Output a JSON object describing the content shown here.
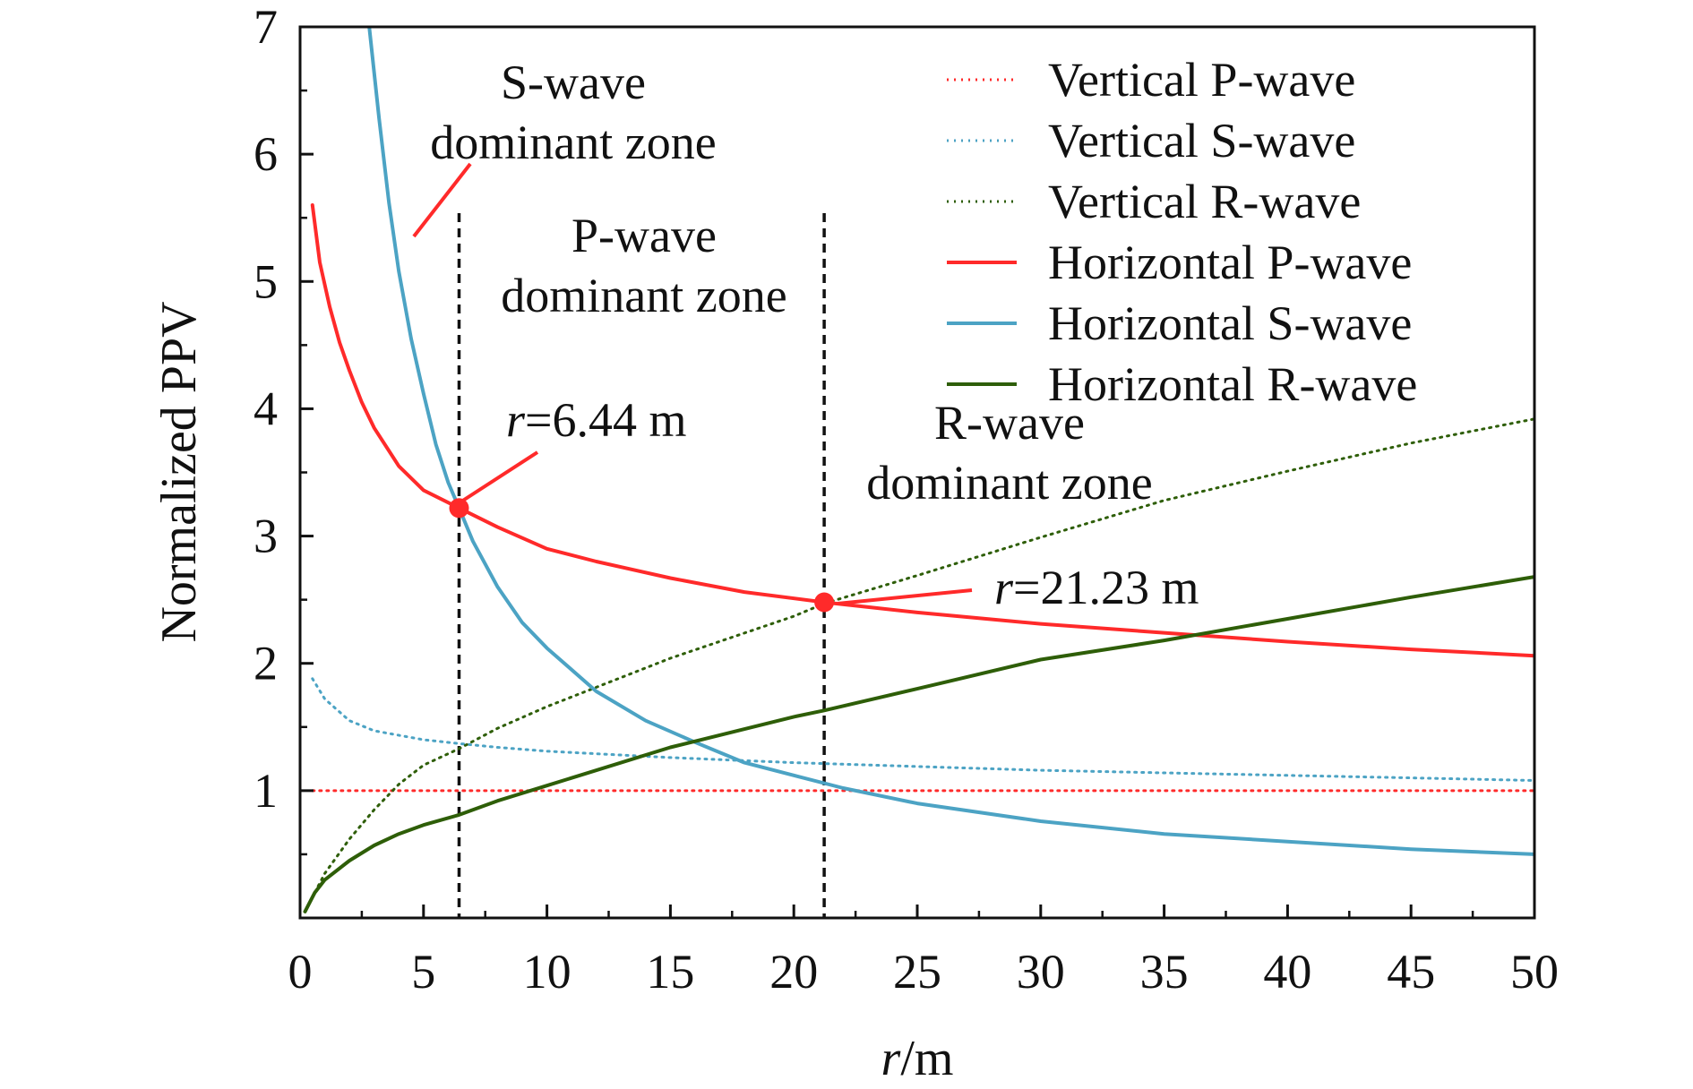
{
  "chart_data": {
    "type": "line",
    "xlabel_italic": "r",
    "xlabel_rest": "/m",
    "ylabel": "Normalized PPV",
    "xlim": [
      0,
      50
    ],
    "ylim": [
      0,
      7
    ],
    "x_ticks": [
      "0",
      "5",
      "10",
      "15",
      "20",
      "25",
      "30",
      "35",
      "40",
      "45",
      "50"
    ],
    "y_ticks": [
      "1",
      "2",
      "3",
      "4",
      "5",
      "6",
      "7"
    ],
    "grid": false,
    "legend_position": "top-right",
    "series": [
      {
        "name": "Vertical P-wave",
        "style": "dotted",
        "color": "#ff2a2a",
        "x": [
          0.5,
          50
        ],
        "y": [
          1.0,
          1.0
        ]
      },
      {
        "name": "Vertical S-wave",
        "style": "dotted",
        "color": "#4ca3c4",
        "x": [
          0.5,
          1,
          2,
          3,
          5,
          6.44,
          8,
          10,
          15,
          20,
          25,
          30,
          35,
          40,
          45,
          50
        ],
        "y": [
          1.88,
          1.72,
          1.55,
          1.47,
          1.4,
          1.37,
          1.34,
          1.31,
          1.26,
          1.22,
          1.19,
          1.16,
          1.14,
          1.12,
          1.1,
          1.08
        ]
      },
      {
        "name": "Vertical R-wave",
        "style": "dotted",
        "color": "#2e5e08",
        "x": [
          0.2,
          1,
          2,
          3,
          4,
          5,
          6.44,
          8,
          10,
          15,
          20,
          21.23,
          25,
          30,
          35,
          40,
          45,
          50
        ],
        "y": [
          0.05,
          0.35,
          0.62,
          0.85,
          1.05,
          1.2,
          1.33,
          1.49,
          1.66,
          2.04,
          2.37,
          2.47,
          2.69,
          2.99,
          3.28,
          3.51,
          3.73,
          3.92
        ]
      },
      {
        "name": "Horizontal P-wave",
        "style": "solid",
        "color": "#ff2a2a",
        "x": [
          0.5,
          0.8,
          1.2,
          1.6,
          2,
          2.5,
          3,
          4,
          5,
          6.44,
          8,
          10,
          12,
          15,
          18,
          21.23,
          25,
          30,
          35,
          40,
          45,
          50
        ],
        "y": [
          5.6,
          5.15,
          4.8,
          4.52,
          4.3,
          4.05,
          3.85,
          3.55,
          3.36,
          3.22,
          3.07,
          2.9,
          2.8,
          2.67,
          2.56,
          2.48,
          2.4,
          2.31,
          2.24,
          2.17,
          2.11,
          2.06
        ]
      },
      {
        "name": "Horizontal S-wave",
        "style": "solid",
        "color": "#4ca3c4",
        "x": [
          2.8,
          3.2,
          3.6,
          4,
          4.5,
          5,
          5.5,
          6,
          6.44,
          7,
          8,
          9,
          10,
          12,
          14,
          16,
          18,
          20,
          22,
          25,
          30,
          35,
          40,
          45,
          50
        ],
        "y": [
          7.0,
          6.28,
          5.62,
          5.08,
          4.55,
          4.12,
          3.72,
          3.42,
          3.22,
          2.96,
          2.6,
          2.32,
          2.12,
          1.78,
          1.55,
          1.38,
          1.22,
          1.12,
          1.02,
          0.9,
          0.76,
          0.66,
          0.6,
          0.54,
          0.5
        ]
      },
      {
        "name": "Horizontal R-wave",
        "style": "solid",
        "color": "#2e5e08",
        "x": [
          0.2,
          0.6,
          1,
          2,
          3,
          4,
          5,
          6.44,
          8,
          10,
          15,
          20,
          21.23,
          25,
          30,
          35,
          40,
          45,
          50
        ],
        "y": [
          0.05,
          0.2,
          0.3,
          0.45,
          0.57,
          0.66,
          0.73,
          0.81,
          0.92,
          1.04,
          1.34,
          1.58,
          1.63,
          1.8,
          2.03,
          2.18,
          2.35,
          2.52,
          2.68
        ]
      }
    ],
    "vertical_lines": [
      6.44,
      21.23
    ],
    "intersections": [
      {
        "label_italic": "r",
        "label_rest": "=6.44 m",
        "x": 6.44,
        "y": 3.22
      },
      {
        "label_italic": "r",
        "label_rest": "=21.23 m",
        "x": 21.23,
        "y": 2.48
      }
    ],
    "zones": [
      {
        "line1": "S-wave",
        "line2": "dominant zone"
      },
      {
        "line1": "P-wave",
        "line2": "dominant zone"
      },
      {
        "line1": "R-wave",
        "line2": "dominant zone"
      }
    ]
  }
}
